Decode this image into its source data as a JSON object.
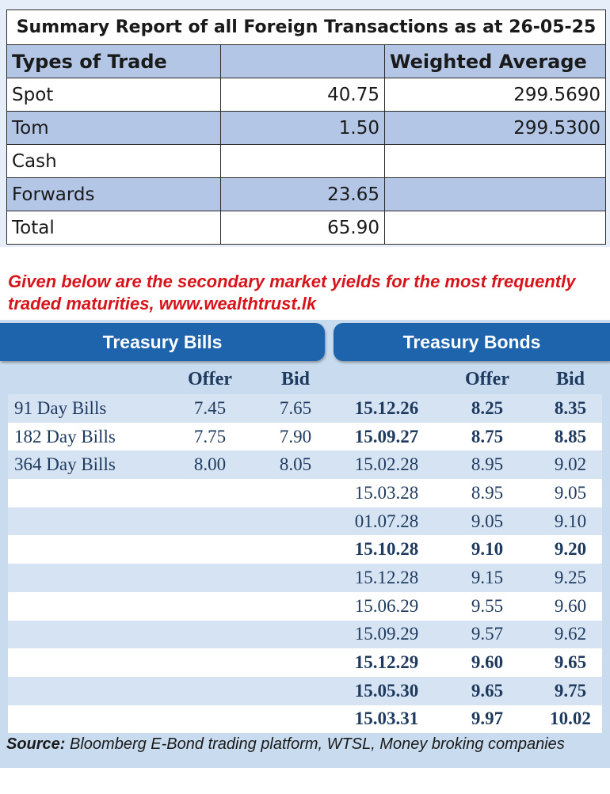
{
  "fx_summary": {
    "title": "Summary Report of all Foreign Transactions as at 26-05-25",
    "header": [
      "Types of Trade",
      "",
      "Weighted Average"
    ],
    "rows": [
      [
        "Spot",
        "40.75",
        "299.5690"
      ],
      [
        "Tom",
        "1.50",
        "299.5300"
      ],
      [
        "Cash",
        "",
        ""
      ],
      [
        "Forwards",
        "23.65",
        ""
      ],
      [
        "Total",
        "65.90",
        ""
      ]
    ]
  },
  "intro_text": "Given below are the secondary market yields for the most frequently traded maturities, www.wealthtrust.lk",
  "yields": {
    "bills_tab": "Treasury Bills",
    "bonds_tab": "Treasury Bonds",
    "headers": [
      "",
      "Offer",
      "Bid",
      "",
      "Offer",
      "Bid"
    ],
    "rows": [
      [
        "91 Day Bills",
        "7.45",
        "7.65",
        "15.12.26",
        "8.25",
        "8.35"
      ],
      [
        "182 Day Bills",
        "7.75",
        "7.90",
        "15.09.27",
        "8.75",
        "8.85"
      ],
      [
        "364 Day Bills",
        "8.00",
        "8.05",
        "15.02.28",
        "8.95",
        "9.02"
      ],
      [
        "",
        "",
        "",
        "15.03.28",
        "8.95",
        "9.05"
      ],
      [
        "",
        "",
        "",
        "01.07.28",
        "9.05",
        "9.10"
      ],
      [
        "",
        "",
        "",
        "15.10.28",
        "9.10",
        "9.20"
      ],
      [
        "",
        "",
        "",
        "15.12.28",
        "9.15",
        "9.25"
      ],
      [
        "",
        "",
        "",
        "15.06.29",
        "9.55",
        "9.60"
      ],
      [
        "",
        "",
        "",
        "15.09.29",
        "9.57",
        "9.62"
      ],
      [
        "",
        "",
        "",
        "15.12.29",
        "9.60",
        "9.65"
      ],
      [
        "",
        "",
        "",
        "15.05.30",
        "9.65",
        "9.75"
      ],
      [
        "",
        "",
        "",
        "15.03.31",
        "9.97",
        "10.02"
      ]
    ]
  },
  "source": {
    "label": "Source:",
    "text": " Bloomberg E-Bond trading platform, WTSL, Money broking companies"
  }
}
